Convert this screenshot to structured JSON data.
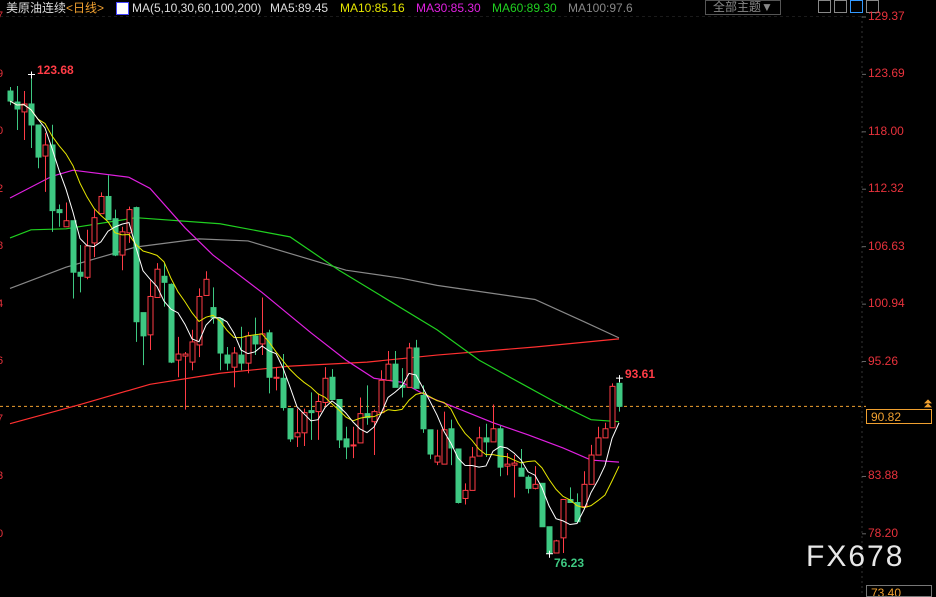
{
  "header": {
    "symbol": "美原油连续",
    "period": "<日线>",
    "ma_params": "MA(5,10,30,60,100,200)",
    "ma5": "MA5:89.45",
    "ma10": "MA10:85.16",
    "ma30": "MA30:85.30",
    "ma60": "MA60:89.30",
    "ma100": "MA100:97.6",
    "theme_button": "全部主题▼",
    "icons": [
      "grid-icon",
      "chart-layout-icon",
      "draw-tool-icon",
      "exit-icon"
    ]
  },
  "colors": {
    "up": "#ff3c46",
    "down": "#3ec882",
    "ma5": "#ffffff",
    "ma10": "#e6e600",
    "ma30": "#e020e0",
    "ma60": "#20d020",
    "ma100": "#888888",
    "ma200": "#ff3030",
    "axis": "#e8323c",
    "last": "#f0a030"
  },
  "left_axis_fragments": [
    "7",
    "9",
    "0",
    "2",
    "8",
    "4",
    "6",
    "7",
    "3",
    "0"
  ],
  "last_price_label": "90.82",
  "bottom_label": "73.40",
  "watermark": "FX678",
  "chart_data": {
    "type": "candlestick",
    "ylim": [
      73.4,
      129.37
    ],
    "y_ticks": [
      "129.37",
      "123.69",
      "118.00",
      "112.32",
      "106.63",
      "100.94",
      "95.26",
      "83.88",
      "78.20"
    ],
    "last_price": 90.82,
    "annotations": {
      "high": "123.68",
      "recent_high": "93.61",
      "low": "76.23"
    },
    "ohlc": [
      [
        122.04,
        121.05,
        122.44,
        120.65
      ],
      [
        120.95,
        120.26,
        122.54,
        118.18
      ],
      [
        119.97,
        120.76,
        122.04,
        117.19
      ],
      [
        120.76,
        118.68,
        123.68,
        116.4
      ],
      [
        118.68,
        115.5,
        118.68,
        114.4
      ],
      [
        115.6,
        116.7,
        117.9,
        112.05
      ],
      [
        116.7,
        110.2,
        118.7,
        108.1
      ],
      [
        110.3,
        110.0,
        110.8,
        108.6
      ],
      [
        108.6,
        109.2,
        111.0,
        108.6
      ],
      [
        109.2,
        104.1,
        109.2,
        101.5
      ],
      [
        104.1,
        103.7,
        106.8,
        102.1
      ],
      [
        103.6,
        106.7,
        108.3,
        103.4
      ],
      [
        107.0,
        109.5,
        110.3,
        105.6
      ],
      [
        109.9,
        111.6,
        112.0,
        109.9
      ],
      [
        111.6,
        109.3,
        113.7,
        109.3
      ],
      [
        109.4,
        105.8,
        110.3,
        105.7
      ],
      [
        105.8,
        108.1,
        108.6,
        104.3
      ],
      [
        108.0,
        110.3,
        110.6,
        107.0
      ],
      [
        110.5,
        99.2,
        110.6,
        97.2
      ],
      [
        100.1,
        97.8,
        100.1,
        94.9
      ],
      [
        97.9,
        101.7,
        103.3,
        96.4
      ],
      [
        101.6,
        104.4,
        105.0,
        101.6
      ],
      [
        103.7,
        103.1,
        105.0,
        100.7
      ],
      [
        102.9,
        95.2,
        103.0,
        95.1
      ],
      [
        95.4,
        96.0,
        97.7,
        93.7
      ],
      [
        95.8,
        96.0,
        96.2,
        90.5
      ],
      [
        95.2,
        97.2,
        98.4,
        94.4
      ],
      [
        96.9,
        101.7,
        102.5,
        95.7
      ],
      [
        101.8,
        103.4,
        104.2,
        101.8
      ],
      [
        100.6,
        99.6,
        102.6,
        99.0
      ],
      [
        99.5,
        96.1,
        99.6,
        94.4
      ],
      [
        95.9,
        95.1,
        96.7,
        94.4
      ],
      [
        94.7,
        96.1,
        96.7,
        92.7
      ],
      [
        95.9,
        95.1,
        98.7,
        94.4
      ],
      [
        95.1,
        97.8,
        98.2,
        94.1
      ],
      [
        97.8,
        97.0,
        99.6,
        95.9
      ],
      [
        97.0,
        98.0,
        101.6,
        95.9
      ],
      [
        98.1,
        93.7,
        98.4,
        92.1
      ],
      [
        93.6,
        93.7,
        94.7,
        92.4
      ],
      [
        93.6,
        90.7,
        96.0,
        90.4
      ],
      [
        90.6,
        87.6,
        90.6,
        87.3
      ],
      [
        87.8,
        88.2,
        90.6,
        86.8
      ],
      [
        88.2,
        90.2,
        90.6,
        86.9
      ],
      [
        90.4,
        90.2,
        92.2,
        87.5
      ],
      [
        90.3,
        91.3,
        92.1,
        87.5
      ],
      [
        91.2,
        93.6,
        94.7,
        90.8
      ],
      [
        93.7,
        91.5,
        94.5,
        91.5
      ],
      [
        91.5,
        87.5,
        91.5,
        86.7
      ],
      [
        87.6,
        86.8,
        88.8,
        85.6
      ],
      [
        86.9,
        87.0,
        88.8,
        85.7
      ],
      [
        87.2,
        90.1,
        91.7,
        87.2
      ],
      [
        90.1,
        89.7,
        92.9,
        89.0
      ],
      [
        89.3,
        90.3,
        90.5,
        86.0
      ],
      [
        90.2,
        93.4,
        94.4,
        90.2
      ],
      [
        93.4,
        95.0,
        96.3,
        93.4
      ],
      [
        95.0,
        92.7,
        96.3,
        92.7
      ],
      [
        92.9,
        92.7,
        94.6,
        91.7
      ],
      [
        92.7,
        96.6,
        97.1,
        92.7
      ],
      [
        96.6,
        92.6,
        97.4,
        92.6
      ],
      [
        91.9,
        88.6,
        92.9,
        88.2
      ],
      [
        88.5,
        86.1,
        88.5,
        85.6
      ],
      [
        85.3,
        85.9,
        88.5,
        85.0
      ],
      [
        85.1,
        88.5,
        90.3,
        85.1
      ],
      [
        88.6,
        86.7,
        89.5,
        85.0
      ],
      [
        86.6,
        81.3,
        86.6,
        81.2
      ],
      [
        81.7,
        82.5,
        83.2,
        81.1
      ],
      [
        82.5,
        85.8,
        86.8,
        82.5
      ],
      [
        85.9,
        87.7,
        88.8,
        85.9
      ],
      [
        87.7,
        87.3,
        89.1,
        85.8
      ],
      [
        87.3,
        88.6,
        91.0,
        87.3
      ],
      [
        88.6,
        84.8,
        88.9,
        83.9
      ],
      [
        84.9,
        85.1,
        86.2,
        84.0
      ],
      [
        85.0,
        85.2,
        86.0,
        81.8
      ],
      [
        84.7,
        83.9,
        86.6,
        83.9
      ],
      [
        83.8,
        82.7,
        84.0,
        82.2
      ],
      [
        82.7,
        83.1,
        84.9,
        82.6
      ],
      [
        83.2,
        78.9,
        83.2,
        78.9
      ],
      [
        78.9,
        76.3,
        78.9,
        76.23
      ],
      [
        76.3,
        77.5,
        77.6,
        76.3
      ],
      [
        77.8,
        81.6,
        81.6,
        76.3
      ],
      [
        81.6,
        81.3,
        82.8,
        81.3
      ],
      [
        81.3,
        79.4,
        82.2,
        79.4
      ],
      [
        80.9,
        83.1,
        84.4,
        80.9
      ],
      [
        83.1,
        86.0,
        87.0,
        83.1
      ],
      [
        86.0,
        87.7,
        88.8,
        86.0
      ],
      [
        87.7,
        88.6,
        89.2,
        87.7
      ],
      [
        88.7,
        92.8,
        93.1,
        88.7
      ],
      [
        93.1,
        90.82,
        93.61,
        90.3
      ]
    ],
    "ma_lines": {
      "ma30": [
        [
          0,
          111.45
        ],
        [
          6,
          113.6
        ],
        [
          9,
          114.2
        ],
        [
          17,
          113.5
        ],
        [
          20,
          112.4
        ],
        [
          25,
          108.5
        ],
        [
          29,
          105.8
        ],
        [
          36,
          102.1
        ],
        [
          43,
          98.1
        ],
        [
          48,
          95.4
        ],
        [
          52,
          93.6
        ],
        [
          56,
          93.2
        ],
        [
          60,
          91.7
        ],
        [
          64,
          90.6
        ],
        [
          69,
          89.2
        ],
        [
          74,
          88.0
        ],
        [
          79,
          86.7
        ],
        [
          83,
          85.5
        ],
        [
          87,
          85.3
        ]
      ],
      "ma60": [
        [
          0,
          107.5
        ],
        [
          3,
          108.3
        ],
        [
          8,
          108.4
        ],
        [
          18,
          109.5
        ],
        [
          30,
          108.9
        ],
        [
          40,
          107.6
        ],
        [
          47,
          104.3
        ],
        [
          61,
          98.4
        ],
        [
          67,
          95.4
        ],
        [
          73,
          93.1
        ],
        [
          78,
          91.2
        ],
        [
          83,
          89.5
        ],
        [
          87,
          89.3
        ]
      ],
      "ma100": [
        [
          0,
          102.5
        ],
        [
          8,
          104.6
        ],
        [
          18,
          106.6
        ],
        [
          27,
          107.4
        ],
        [
          34,
          107.2
        ],
        [
          48,
          104.3
        ],
        [
          56,
          103.5
        ],
        [
          61,
          102.8
        ],
        [
          75,
          101.4
        ],
        [
          82,
          99.2
        ],
        [
          87,
          97.6
        ]
      ],
      "ma200": [
        [
          0,
          89.1
        ],
        [
          10,
          91.0
        ],
        [
          20,
          93.0
        ],
        [
          30,
          94.1
        ],
        [
          40,
          94.8
        ],
        [
          51,
          95.2
        ],
        [
          61,
          95.9
        ],
        [
          75,
          96.7
        ],
        [
          87,
          97.5
        ]
      ]
    }
  }
}
